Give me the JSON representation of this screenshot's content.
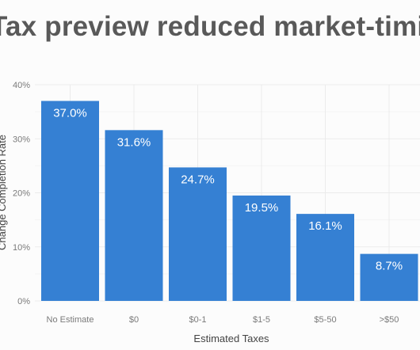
{
  "slide": {
    "title": "Tax preview reduced market-timing"
  },
  "chart_data": {
    "type": "bar",
    "categories": [
      "No Estimate",
      "$0",
      "$0-1",
      "$1-5",
      "$5-50",
      ">$50"
    ],
    "values": [
      37.0,
      31.6,
      24.7,
      19.5,
      16.1,
      8.7
    ],
    "value_labels": [
      "37.0%",
      "31.6%",
      "24.7%",
      "19.5%",
      "16.1%",
      "8.7%"
    ],
    "xlabel": "Estimated Taxes",
    "ylabel": "Change Completion Rate",
    "ylim": [
      0,
      40
    ],
    "yticks": [
      0,
      10,
      20,
      30,
      40
    ],
    "ytick_labels": [
      "0%",
      "10%",
      "20%",
      "30%",
      "40%"
    ],
    "grid": true,
    "colors": {
      "bar": "#3580d3",
      "grid": "#ebebeb",
      "axis_text": "#7a7a7a"
    }
  }
}
